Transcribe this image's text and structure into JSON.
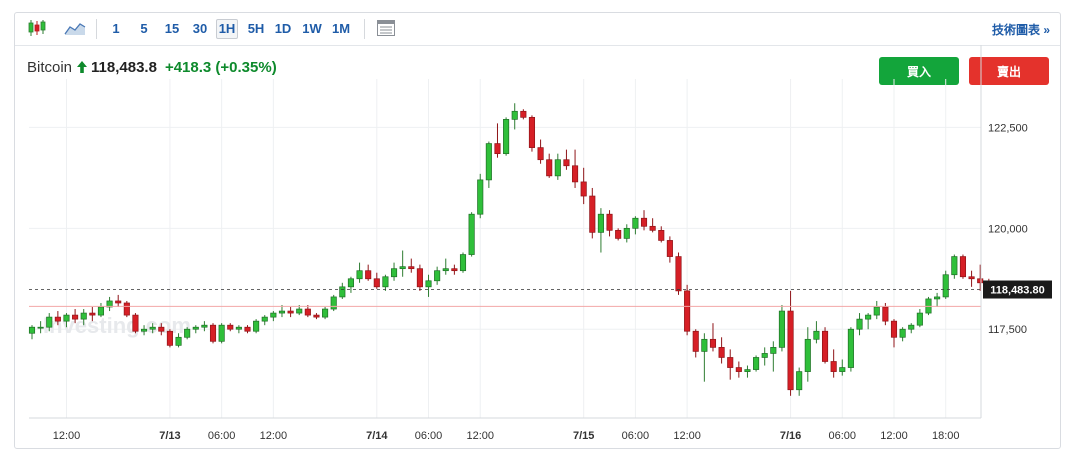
{
  "toolbar": {
    "candles_icon": "candlestick-icon",
    "area_icon": "area-chart-icon",
    "timeframes": [
      "1",
      "5",
      "15",
      "30",
      "1H",
      "5H",
      "1D",
      "1W",
      "1M"
    ],
    "active_timeframe": "1H",
    "table_icon": "table-icon",
    "technical_link": "技術圖表 »"
  },
  "quote": {
    "name": "Bitcoin",
    "price": "118,483.8",
    "change": "+418.3",
    "change_pct": "(+0.35%)",
    "direction": "up",
    "up_color": "#0e8a2c"
  },
  "actions": {
    "buy_label": "買入",
    "sell_label": "賣出",
    "buy_color": "#13a53b",
    "sell_color": "#e4322c"
  },
  "watermark": "Investing.com",
  "chart_data": {
    "type": "candlestick",
    "title": "",
    "xlabel": "",
    "ylabel": "",
    "y_ticks": [
      117500,
      120000,
      122500
    ],
    "y_tick_labels": [
      "117,500",
      "120,000",
      "122,500"
    ],
    "ylim": [
      115300,
      123700
    ],
    "x_ticks": [
      {
        "i": 4,
        "label": "12:00",
        "bold": false
      },
      {
        "i": 16,
        "label": "7/13",
        "bold": true
      },
      {
        "i": 22,
        "label": "06:00",
        "bold": false
      },
      {
        "i": 28,
        "label": "12:00",
        "bold": false
      },
      {
        "i": 40,
        "label": "7/14",
        "bold": true
      },
      {
        "i": 46,
        "label": "06:00",
        "bold": false
      },
      {
        "i": 52,
        "label": "12:00",
        "bold": false
      },
      {
        "i": 64,
        "label": "7/15",
        "bold": true
      },
      {
        "i": 70,
        "label": "06:00",
        "bold": false
      },
      {
        "i": 76,
        "label": "12:00",
        "bold": false
      },
      {
        "i": 88,
        "label": "7/16",
        "bold": true
      },
      {
        "i": 94,
        "label": "06:00",
        "bold": false
      },
      {
        "i": 100,
        "label": "12:00",
        "bold": false
      },
      {
        "i": 106,
        "label": "18:00",
        "bold": false
      }
    ],
    "last_price": 118483.8,
    "last_price_label": "118,483.80",
    "reference_price": 118065,
    "grid": true,
    "up_color": "#2fbf3a",
    "down_color": "#d61f26",
    "candles": [
      [
        117400,
        117600,
        117250,
        117550
      ],
      [
        117550,
        117700,
        117400,
        117550
      ],
      [
        117550,
        117900,
        117450,
        117800
      ],
      [
        117800,
        117950,
        117600,
        117700
      ],
      [
        117700,
        117900,
        117550,
        117850
      ],
      [
        117850,
        118000,
        117650,
        117750
      ],
      [
        117750,
        118000,
        117600,
        117900
      ],
      [
        117900,
        118050,
        117700,
        117850
      ],
      [
        117850,
        118150,
        117800,
        118050
      ],
      [
        118050,
        118300,
        117950,
        118200
      ],
      [
        118200,
        118350,
        118050,
        118150
      ],
      [
        118150,
        118200,
        117800,
        117850
      ],
      [
        117850,
        117900,
        117400,
        117450
      ],
      [
        117450,
        117600,
        117350,
        117500
      ],
      [
        117500,
        117650,
        117400,
        117550
      ],
      [
        117550,
        117650,
        117350,
        117450
      ],
      [
        117450,
        117500,
        117050,
        117100
      ],
      [
        117100,
        117400,
        117050,
        117300
      ],
      [
        117300,
        117550,
        117250,
        117500
      ],
      [
        117500,
        117600,
        117400,
        117550
      ],
      [
        117550,
        117700,
        117450,
        117600
      ],
      [
        117600,
        117650,
        117150,
        117200
      ],
      [
        117200,
        117650,
        117150,
        117600
      ],
      [
        117600,
        117650,
        117450,
        117500
      ],
      [
        117500,
        117600,
        117400,
        117550
      ],
      [
        117550,
        117600,
        117400,
        117450
      ],
      [
        117450,
        117750,
        117400,
        117700
      ],
      [
        117700,
        117850,
        117600,
        117800
      ],
      [
        117800,
        117950,
        117700,
        117900
      ],
      [
        117900,
        118100,
        117800,
        117950
      ],
      [
        117950,
        118050,
        117800,
        117900
      ],
      [
        117900,
        118100,
        117850,
        118000
      ],
      [
        118000,
        118100,
        117800,
        117850
      ],
      [
        117850,
        117900,
        117750,
        117800
      ],
      [
        117800,
        118050,
        117750,
        118000
      ],
      [
        118000,
        118350,
        117950,
        118300
      ],
      [
        118300,
        118650,
        118250,
        118550
      ],
      [
        118550,
        118800,
        118400,
        118750
      ],
      [
        118750,
        119150,
        118650,
        118950
      ],
      [
        118950,
        119100,
        118700,
        118750
      ],
      [
        118750,
        118900,
        118500,
        118550
      ],
      [
        118550,
        118850,
        118450,
        118800
      ],
      [
        118800,
        119150,
        118700,
        119000
      ],
      [
        119000,
        119450,
        118800,
        119050
      ],
      [
        119050,
        119250,
        118900,
        119000
      ],
      [
        119000,
        119100,
        118450,
        118550
      ],
      [
        118550,
        118850,
        118300,
        118700
      ],
      [
        118700,
        119050,
        118600,
        118950
      ],
      [
        118950,
        119250,
        118850,
        119000
      ],
      [
        119000,
        119100,
        118850,
        118950
      ],
      [
        118950,
        119400,
        118900,
        119350
      ],
      [
        119350,
        120400,
        119300,
        120350
      ],
      [
        120350,
        121350,
        120250,
        121200
      ],
      [
        121200,
        122150,
        121000,
        122100
      ],
      [
        122100,
        122600,
        121750,
        121850
      ],
      [
        121850,
        122750,
        121800,
        122700
      ],
      [
        122700,
        123100,
        122450,
        122900
      ],
      [
        122900,
        122950,
        122700,
        122750
      ],
      [
        122750,
        122800,
        121900,
        122000
      ],
      [
        122000,
        122200,
        121600,
        121700
      ],
      [
        121700,
        121850,
        121250,
        121300
      ],
      [
        121300,
        121850,
        121200,
        121700
      ],
      [
        121700,
        121950,
        121450,
        121550
      ],
      [
        121550,
        121950,
        121000,
        121150
      ],
      [
        121150,
        121500,
        120600,
        120800
      ],
      [
        120800,
        121000,
        119750,
        119900
      ],
      [
        119900,
        120500,
        119400,
        120350
      ],
      [
        120350,
        120450,
        119800,
        119950
      ],
      [
        119950,
        120000,
        119700,
        119750
      ],
      [
        119750,
        120100,
        119650,
        120000
      ],
      [
        120000,
        120300,
        119850,
        120250
      ],
      [
        120250,
        120450,
        119950,
        120050
      ],
      [
        120050,
        120250,
        119900,
        119950
      ],
      [
        119950,
        120050,
        119650,
        119700
      ],
      [
        119700,
        119800,
        119150,
        119300
      ],
      [
        119300,
        119400,
        118350,
        118450
      ],
      [
        118450,
        118600,
        117350,
        117450
      ],
      [
        117450,
        117500,
        116800,
        116950
      ],
      [
        116950,
        117400,
        116200,
        117250
      ],
      [
        117250,
        117650,
        116950,
        117050
      ],
      [
        117050,
        117300,
        116650,
        116800
      ],
      [
        116800,
        117000,
        116250,
        116550
      ],
      [
        116550,
        116700,
        116300,
        116450
      ],
      [
        116450,
        116600,
        116300,
        116500
      ],
      [
        116500,
        116850,
        116450,
        116800
      ],
      [
        116800,
        117050,
        116600,
        116900
      ],
      [
        116900,
        117200,
        116450,
        117050
      ],
      [
        117050,
        118100,
        116950,
        117950
      ],
      [
        117950,
        118450,
        115850,
        116000
      ],
      [
        116000,
        116550,
        115850,
        116450
      ],
      [
        116450,
        117550,
        116200,
        117250
      ],
      [
        117250,
        117700,
        117150,
        117450
      ],
      [
        117450,
        117550,
        116650,
        116700
      ],
      [
        116700,
        117000,
        116300,
        116450
      ],
      [
        116450,
        116750,
        116350,
        116550
      ],
      [
        116550,
        117550,
        116450,
        117500
      ],
      [
        117500,
        117900,
        117350,
        117750
      ],
      [
        117750,
        117900,
        117500,
        117850
      ],
      [
        117850,
        118200,
        117750,
        118050
      ],
      [
        118050,
        118150,
        117600,
        117700
      ],
      [
        117700,
        117750,
        117050,
        117300
      ],
      [
        117300,
        117550,
        117200,
        117500
      ],
      [
        117500,
        117650,
        117400,
        117600
      ],
      [
        117600,
        118000,
        117550,
        117900
      ],
      [
        117900,
        118300,
        117850,
        118250
      ],
      [
        118250,
        118400,
        118050,
        118300
      ],
      [
        118300,
        118950,
        118250,
        118850
      ],
      [
        118850,
        119350,
        118750,
        119300
      ],
      [
        119300,
        119350,
        118750,
        118800
      ],
      [
        118800,
        118950,
        118550,
        118750
      ],
      [
        118750,
        119100,
        118450,
        118650
      ],
      [
        118650,
        118750,
        118400,
        118480
      ]
    ]
  }
}
